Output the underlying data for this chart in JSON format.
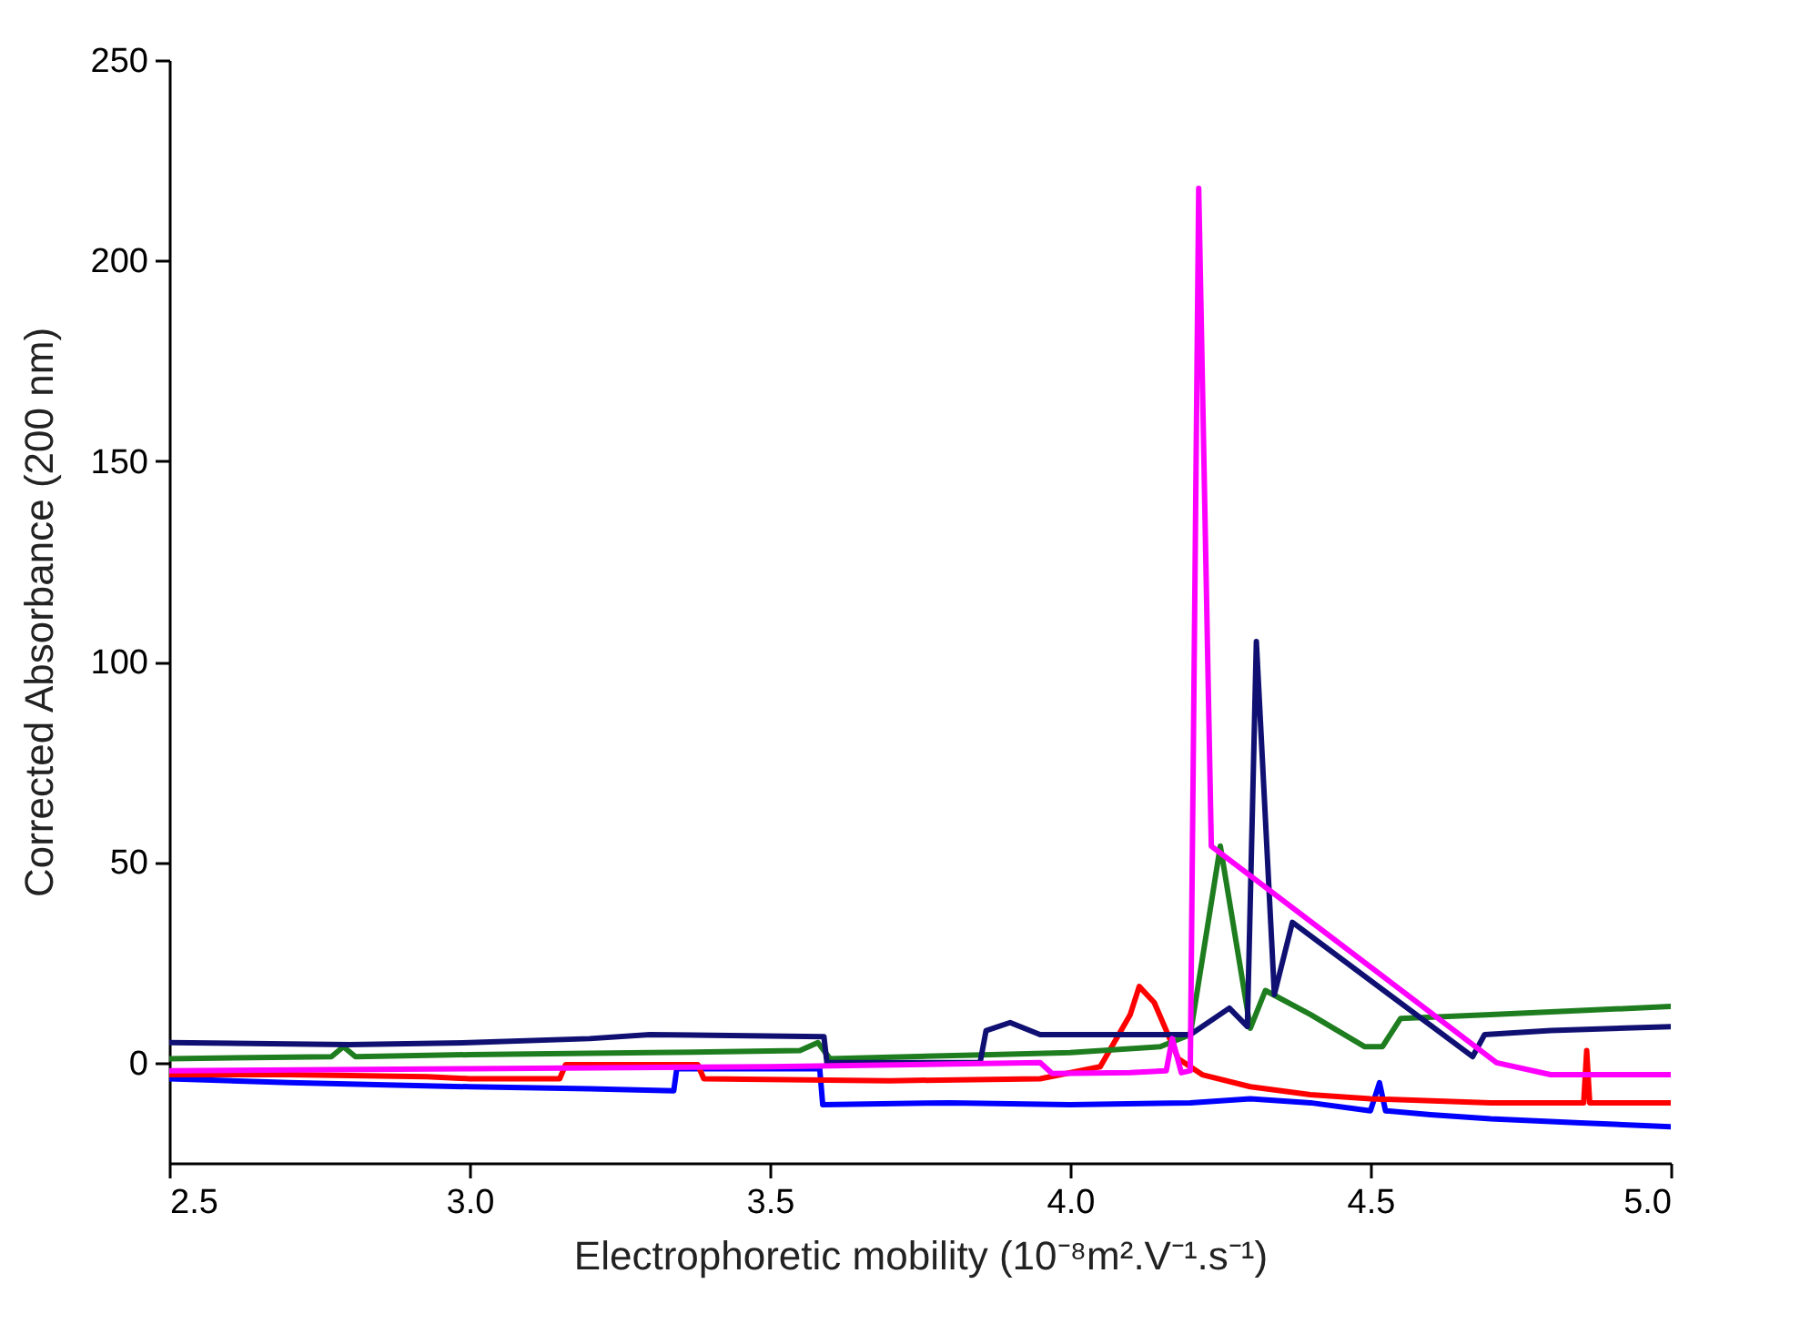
{
  "chart_data": {
    "type": "line",
    "xlabel": "Electrophoretic mobility (10⁻⁸m².V⁻¹.s⁻¹)",
    "ylabel": "Corrected Absorbance (200 nm)",
    "xlim": [
      2.5,
      5.0
    ],
    "xticks": [
      {
        "value": 2.5,
        "label": "2.5"
      },
      {
        "value": 3,
        "label": "3.0"
      },
      {
        "value": 3.5,
        "label": "3.5"
      },
      {
        "value": 4,
        "label": "4.0"
      },
      {
        "value": 4.5,
        "label": "4.5"
      },
      {
        "value": 5,
        "label": "5.0"
      }
    ],
    "ylim": [
      -25,
      250
    ],
    "yticks": [
      0,
      50,
      100,
      150,
      200,
      250
    ],
    "grid": false,
    "marker": "none",
    "line_style": "solid",
    "series": [
      {
        "color": "#0000ff",
        "x": [
          2.5,
          2.7,
          3.0,
          3.2,
          3.34,
          3.345,
          3.45,
          3.583,
          3.588,
          3.8,
          4.0,
          4.2,
          4.3,
          4.4,
          4.5,
          4.515,
          4.525,
          4.6,
          4.7,
          4.85,
          5.0
        ],
        "values": [
          -4,
          -5,
          -6,
          -6.5,
          -7,
          -1.5,
          -1.5,
          -1.5,
          -10.5,
          -10,
          -10.5,
          -10,
          -9,
          -10,
          -12,
          -5,
          -12,
          -13,
          -14,
          -15,
          -16
        ]
      },
      {
        "color": "#ff0000",
        "x": [
          2.5,
          2.7,
          2.93,
          3.0,
          3.15,
          3.16,
          3.38,
          3.39,
          3.7,
          3.95,
          4.05,
          4.1,
          4.115,
          4.14,
          4.18,
          4.22,
          4.3,
          4.4,
          4.5,
          4.7,
          4.855,
          4.86,
          4.865,
          5.0
        ],
        "values": [
          -3,
          -3,
          -3.5,
          -4,
          -4,
          -0.5,
          -0.5,
          -4,
          -4.5,
          -4,
          -1,
          12,
          19,
          15,
          1,
          -3,
          -6,
          -8,
          -9,
          -10,
          -10,
          3,
          -10,
          -10
        ]
      },
      {
        "color": "#1e7d1e",
        "x": [
          2.5,
          2.77,
          2.79,
          2.81,
          3.0,
          3.3,
          3.55,
          3.58,
          3.6,
          3.87,
          4.0,
          4.15,
          4.2,
          4.25,
          4.3,
          4.325,
          4.4,
          4.49,
          4.52,
          4.55,
          4.7,
          4.85,
          5.0
        ],
        "values": [
          1,
          1.5,
          4,
          1.5,
          2,
          2.5,
          3,
          5,
          1,
          2,
          2.5,
          4,
          7,
          54,
          8.6,
          18,
          12,
          4,
          4,
          11,
          12,
          13,
          14
        ]
      },
      {
        "color": "#101073",
        "x": [
          2.5,
          2.8,
          3.0,
          3.2,
          3.3,
          3.59,
          3.595,
          3.85,
          3.86,
          3.9,
          3.95,
          4.2,
          4.265,
          4.295,
          4.31,
          4.34,
          4.37,
          4.67,
          4.69,
          4.8,
          5.0
        ],
        "values": [
          5,
          4.5,
          5,
          6,
          7,
          6.5,
          0,
          0,
          8,
          10,
          7,
          7,
          13.6,
          9,
          105,
          17,
          35,
          1.5,
          7,
          8,
          9
        ]
      },
      {
        "color": "#ff00ff",
        "x": [
          2.5,
          3.0,
          3.5,
          3.95,
          3.97,
          4.1,
          4.16,
          4.17,
          4.185,
          4.2,
          4.214,
          4.235,
          4.71,
          4.8,
          5.0
        ],
        "values": [
          -2,
          -1.5,
          -1,
          0,
          -2.7,
          -2.5,
          -2,
          6,
          -2.5,
          -2,
          218,
          54,
          0,
          -3,
          -3
        ]
      }
    ]
  }
}
